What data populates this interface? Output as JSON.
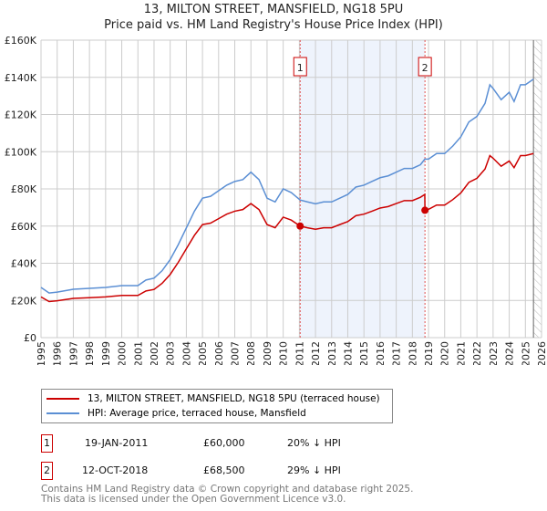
{
  "chart_data": {
    "type": "line",
    "title": "13, MILTON STREET, MANSFIELD, NG18 5PU",
    "subtitle": "Price paid vs. HM Land Registry's House Price Index (HPI)",
    "xlim": [
      1995,
      2026
    ],
    "ylim": [
      0,
      160000
    ],
    "x_ticks": [
      "1995",
      "1996",
      "1997",
      "1998",
      "1999",
      "2000",
      "2001",
      "2002",
      "2003",
      "2004",
      "2005",
      "2006",
      "2007",
      "2008",
      "2009",
      "2010",
      "2011",
      "2012",
      "2013",
      "2014",
      "2015",
      "2016",
      "2017",
      "2018",
      "2019",
      "2020",
      "2021",
      "2022",
      "2023",
      "2024",
      "2025",
      "2026"
    ],
    "y_ticks": [
      "£0",
      "£20K",
      "£40K",
      "£60K",
      "£80K",
      "£100K",
      "£120K",
      "£140K",
      "£160K"
    ],
    "x": [
      1995,
      1995.5,
      1996,
      1997,
      1998,
      1999,
      2000,
      2001,
      2001.5,
      2002,
      2002.5,
      2003,
      2003.5,
      2004,
      2004.5,
      2005,
      2005.5,
      2006,
      2006.5,
      2007,
      2007.5,
      2008,
      2008.5,
      2009,
      2009.5,
      2010,
      2010.5,
      2011.05,
      2011.5,
      2012,
      2012.5,
      2013,
      2013.5,
      2014,
      2014.5,
      2015,
      2015.5,
      2016,
      2016.5,
      2017,
      2017.5,
      2018,
      2018.5,
      2018.77,
      2018.78,
      2019,
      2019.5,
      2020,
      2020.5,
      2021,
      2021.5,
      2022,
      2022.5,
      2022.8,
      2023,
      2023.5,
      2024,
      2024.3,
      2024.7,
      2025,
      2025.5
    ],
    "series": [
      {
        "name": "13, MILTON STREET, MANSFIELD, NG18 5PU (terraced house)",
        "color": "#cc0000",
        "values": [
          21.9,
          19.4,
          19.8,
          21.1,
          21.5,
          21.9,
          22.7,
          22.7,
          25.1,
          25.9,
          29.2,
          34,
          40.5,
          47.8,
          55,
          60.8,
          61.6,
          64,
          66.4,
          68,
          68.9,
          72.1,
          68.9,
          60.8,
          59.1,
          64.8,
          63.2,
          60,
          59.1,
          58.3,
          59.1,
          59.1,
          60.8,
          62.4,
          65.6,
          66.4,
          68,
          69.7,
          70.5,
          72.1,
          73.7,
          73.7,
          75.5,
          77,
          68.5,
          69,
          71.3,
          71.3,
          74.2,
          77.8,
          83.5,
          85.7,
          90.7,
          97.9,
          96.5,
          92.2,
          95,
          91.4,
          97.9,
          97.9,
          99
        ]
      },
      {
        "name": "HPI: Average price, terraced house, Mansfield",
        "color": "#5b8fd4",
        "values": [
          27,
          24,
          24.5,
          26,
          26.5,
          27,
          28,
          28,
          31,
          32,
          36,
          42,
          50,
          59,
          68,
          75,
          76,
          79,
          82,
          84,
          85,
          89,
          85,
          75,
          73,
          80,
          78,
          74,
          73,
          72,
          73,
          73,
          75,
          77,
          81,
          82,
          84,
          86,
          87,
          89,
          91,
          91,
          93,
          96,
          96,
          96,
          99,
          99,
          103,
          108,
          116,
          119,
          126,
          136,
          134,
          128,
          132,
          127,
          136,
          136,
          139
        ]
      }
    ],
    "value_unit": "thousand GBP",
    "shaded_range": [
      2011.05,
      2018.78
    ],
    "hatched_from": 2025.5,
    "annotations": [
      {
        "label": "1",
        "x": 2011.05,
        "y": 60000
      },
      {
        "label": "2",
        "x": 2018.78,
        "y": 68500
      }
    ],
    "legend_position": "below"
  },
  "transactions": [
    {
      "num": "1",
      "date": "19-JAN-2011",
      "price": "£60,000",
      "hpi": "20% ↓ HPI"
    },
    {
      "num": "2",
      "date": "12-OCT-2018",
      "price": "£68,500",
      "hpi": "29% ↓ HPI"
    }
  ],
  "footer": [
    "Contains HM Land Registry data © Crown copyright and database right 2025.",
    "This data is licensed under the Open Government Licence v3.0."
  ]
}
